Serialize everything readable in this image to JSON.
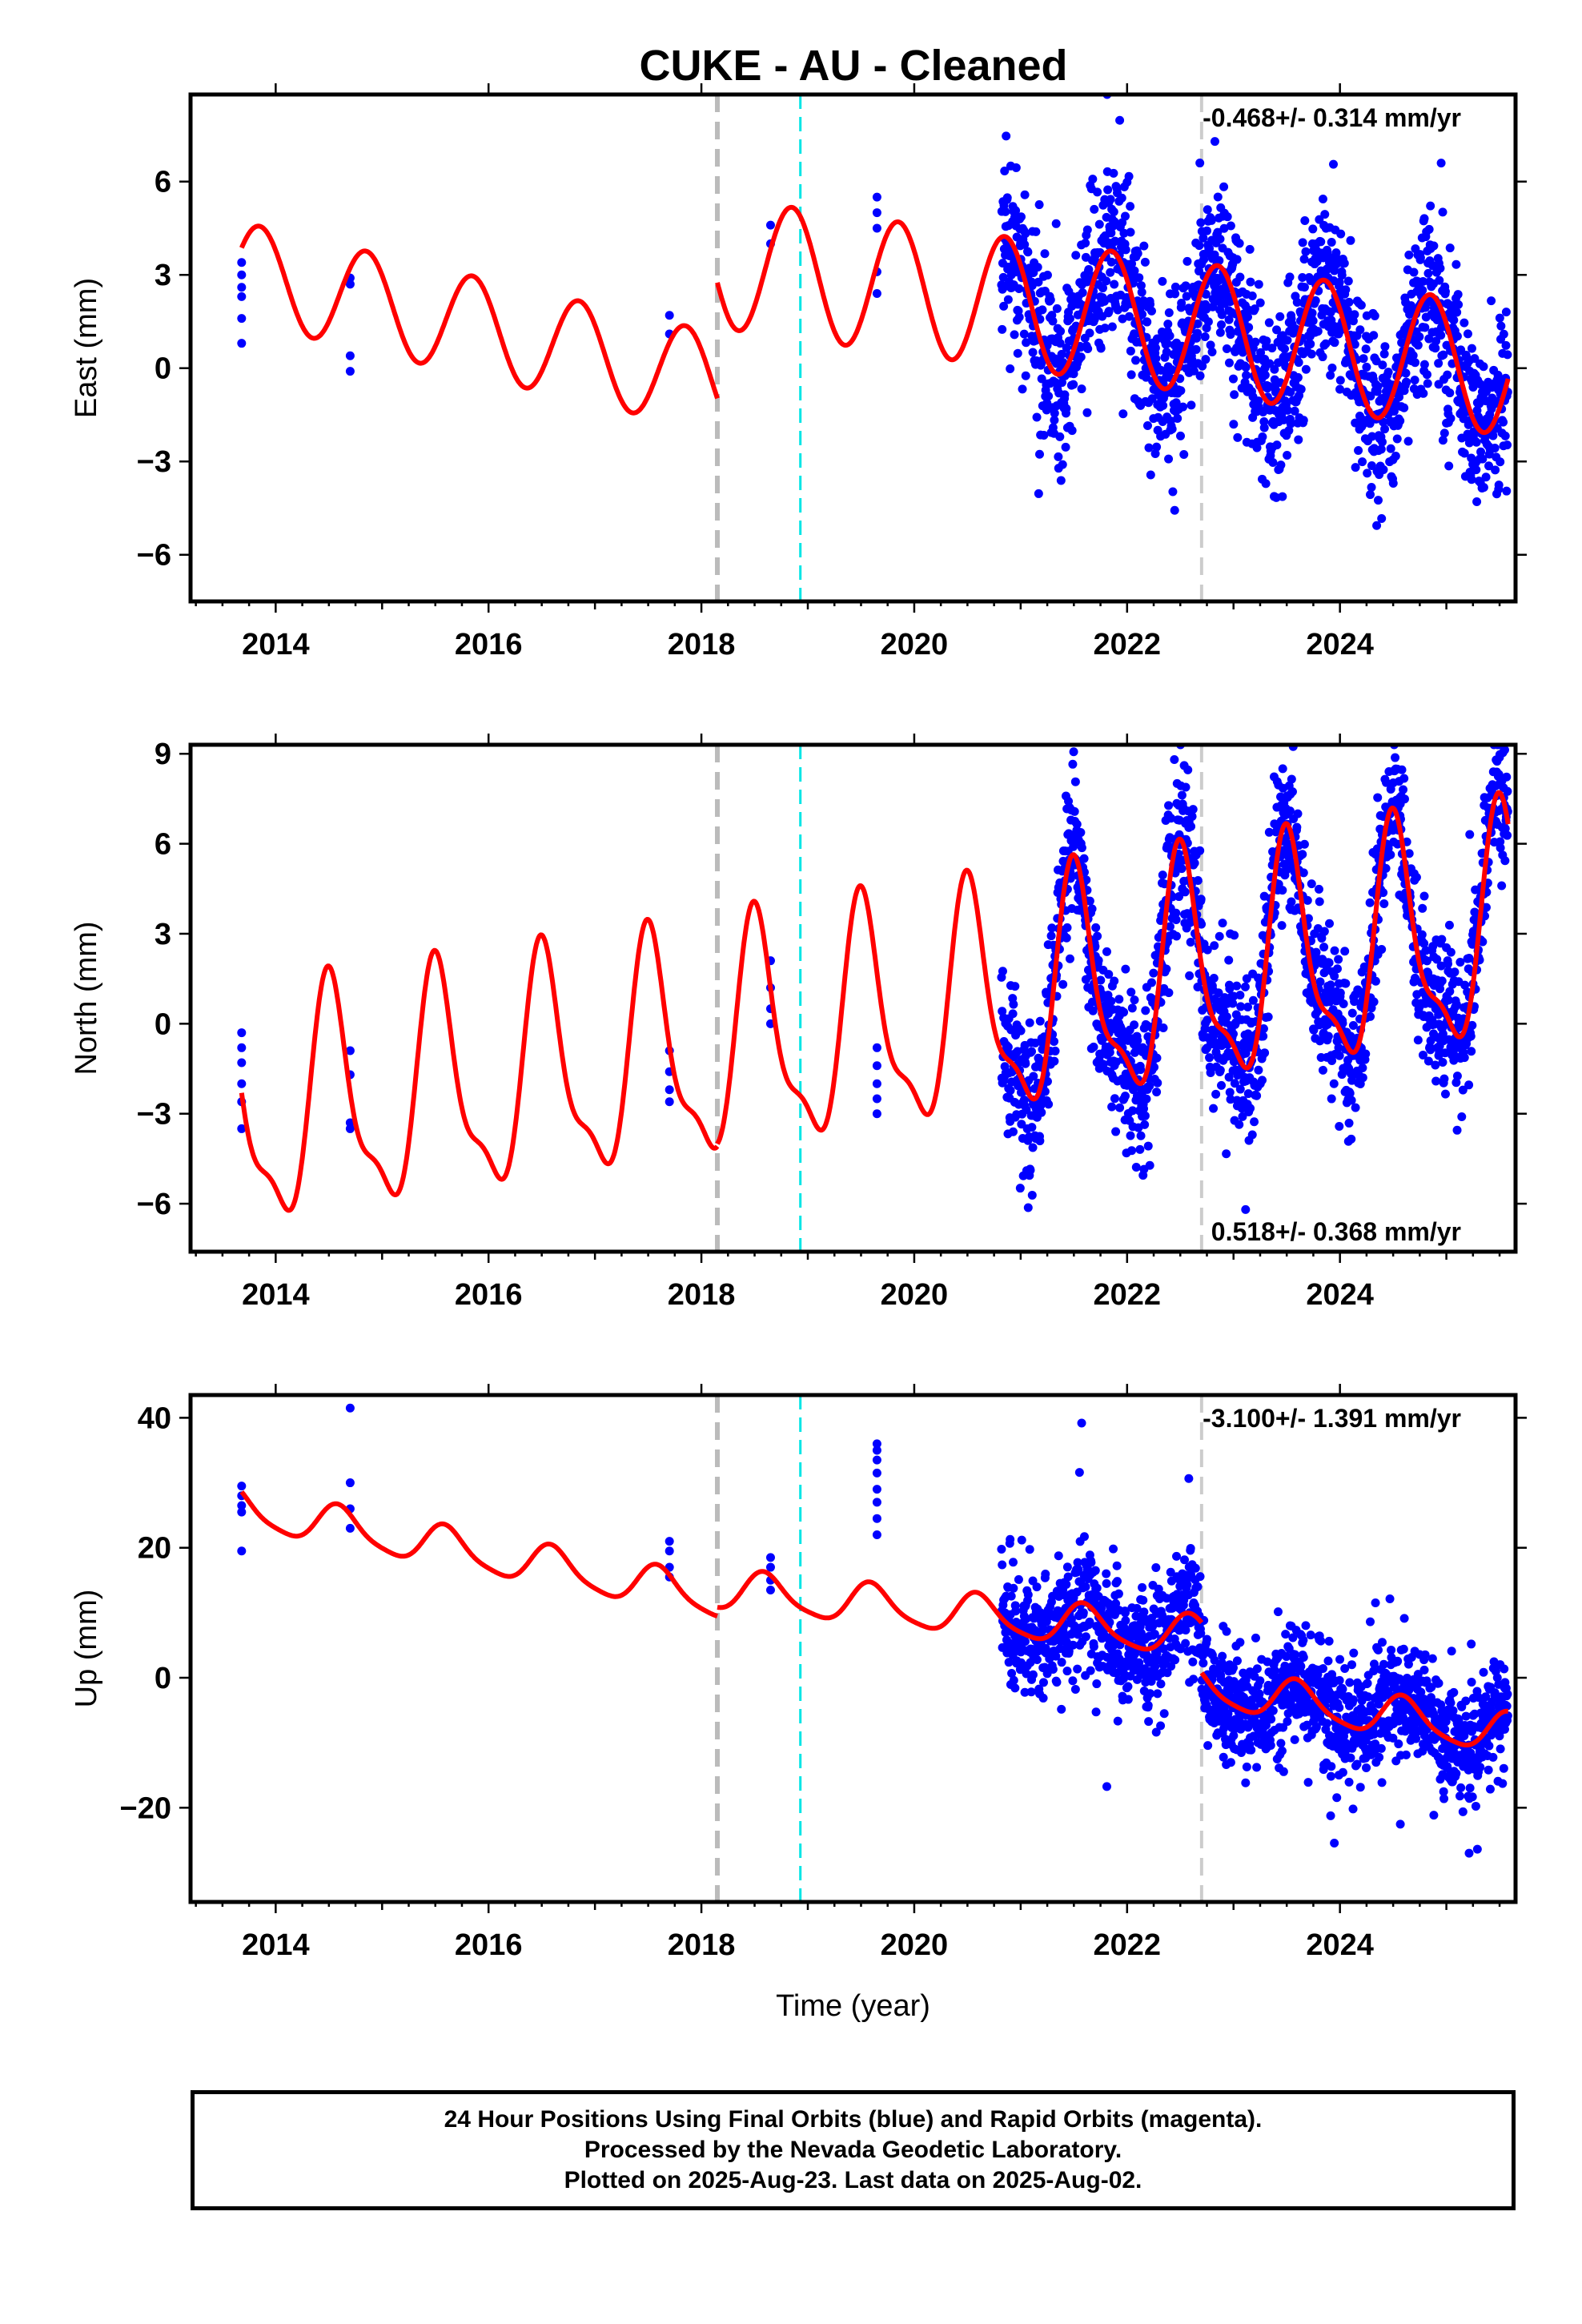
{
  "chart_data": [
    {
      "type": "scatter",
      "title": "CUKE  - AU - Cleaned",
      "ylabel": "East (mm)",
      "xlim": [
        2013.2,
        2025.65
      ],
      "ylim": [
        -7.5,
        8.8
      ],
      "yticks": [
        -6,
        -3,
        0,
        3,
        6
      ],
      "xticks": [
        2014,
        2016,
        2018,
        2020,
        2022,
        2024
      ],
      "rate_text": "-0.468+/- 0.314 mm/yr",
      "rate_position": "top-right",
      "step_lines": [
        {
          "x": 2018.15,
          "color": "#bbbbbb",
          "style": "dashed"
        },
        {
          "x": 2018.93,
          "color": "#00e5e5",
          "style": "dashed"
        },
        {
          "x": 2022.7,
          "color": "#cccccc",
          "style": "dashed"
        }
      ],
      "series": [
        {
          "role": "final orbits",
          "color": "#0000ff",
          "marker": "dot"
        },
        {
          "role": "model fit",
          "color": "#ff0000",
          "marker": "line"
        }
      ],
      "sparse_points": [
        {
          "x": 2013.68,
          "y": [
            0.8,
            1.6,
            2.3,
            2.6,
            3.0,
            3.4
          ]
        },
        {
          "x": 2014.7,
          "y": [
            -0.1,
            0.4,
            2.7,
            2.9
          ]
        },
        {
          "x": 2017.7,
          "y": [
            1.1,
            1.7
          ]
        },
        {
          "x": 2018.65,
          "y": [
            4.0,
            4.6
          ]
        },
        {
          "x": 2019.65,
          "y": [
            2.4,
            3.1,
            4.5,
            5.0,
            5.5
          ]
        }
      ],
      "model_segments": [
        {
          "start": 2013.68,
          "end": 2018.15,
          "base": 3.1,
          "slope": -0.8,
          "amplitude": 1.6,
          "phase_peak": 0.85,
          "a2": 0.0
        },
        {
          "start": 2018.15,
          "end": 2025.58,
          "base": 3.4,
          "slope": -0.468,
          "amplitude": 2.1,
          "phase_peak": 0.85,
          "a2": 0.0
        }
      ],
      "dense": {
        "start": 2020.82,
        "end": 2025.58,
        "count": 1650,
        "sigma": 1.35,
        "seed": 11
      }
    },
    {
      "type": "scatter",
      "ylabel": "North (mm)",
      "xlim": [
        2013.2,
        2025.65
      ],
      "ylim": [
        -7.6,
        9.3
      ],
      "yticks": [
        -6,
        -3,
        0,
        3,
        6,
        9
      ],
      "xticks": [
        2014,
        2016,
        2018,
        2020,
        2022,
        2024
      ],
      "rate_text": "0.518+/- 0.368 mm/yr",
      "rate_position": "bottom-right",
      "step_lines": [
        {
          "x": 2018.15,
          "color": "#bbbbbb",
          "style": "dashed"
        },
        {
          "x": 2018.93,
          "color": "#00e5e5",
          "style": "dashed"
        },
        {
          "x": 2022.7,
          "color": "#cccccc",
          "style": "dashed"
        }
      ],
      "series": [
        {
          "role": "final orbits",
          "color": "#0000ff",
          "marker": "dot"
        },
        {
          "role": "model fit",
          "color": "#ff0000",
          "marker": "line"
        }
      ],
      "sparse_points": [
        {
          "x": 2013.68,
          "y": [
            -3.5,
            -2.6,
            -2.0,
            -1.3,
            -0.8,
            -0.3
          ]
        },
        {
          "x": 2014.7,
          "y": [
            -3.5,
            -3.3,
            -1.7,
            -0.9
          ]
        },
        {
          "x": 2017.7,
          "y": [
            -2.6,
            -2.2,
            -1.6,
            -0.9
          ]
        },
        {
          "x": 2018.65,
          "y": [
            0.0,
            0.5,
            1.2,
            2.1
          ]
        },
        {
          "x": 2019.65,
          "y": [
            -3.0,
            -2.5,
            -2.0,
            -1.4,
            -0.8
          ]
        }
      ],
      "model_segments": [
        {
          "start": 2013.68,
          "end": 2018.15,
          "base": -3.2,
          "slope": 0.518,
          "amplitude": 3.6,
          "phase_peak": 0.52,
          "a2": 1.2
        },
        {
          "start": 2018.15,
          "end": 2025.58,
          "base": -0.8,
          "slope": 0.518,
          "amplitude": 3.6,
          "phase_peak": 0.52,
          "a2": 1.2
        }
      ],
      "dense": {
        "start": 2020.82,
        "end": 2025.58,
        "count": 1650,
        "sigma": 1.25,
        "seed": 23
      }
    },
    {
      "type": "scatter",
      "ylabel": "Up (mm)",
      "xlabel": "Time (year)",
      "xlim": [
        2013.2,
        2025.65
      ],
      "ylim": [
        -34.5,
        43.5
      ],
      "yticks": [
        -20,
        0,
        20,
        40
      ],
      "xticks": [
        2014,
        2016,
        2018,
        2020,
        2022,
        2024
      ],
      "rate_text": "-3.100+/- 1.391 mm/yr",
      "rate_position": "top-right",
      "step_lines": [
        {
          "x": 2018.15,
          "color": "#bbbbbb",
          "style": "dashed"
        },
        {
          "x": 2018.93,
          "color": "#00e5e5",
          "style": "dashed"
        },
        {
          "x": 2022.7,
          "color": "#cccccc",
          "style": "dashed"
        }
      ],
      "series": [
        {
          "role": "final orbits",
          "color": "#0000ff",
          "marker": "dot"
        },
        {
          "role": "model fit",
          "color": "#ff0000",
          "marker": "line"
        }
      ],
      "sparse_points": [
        {
          "x": 2013.68,
          "y": [
            19.5,
            25.5,
            26.5,
            28.0,
            29.5
          ]
        },
        {
          "x": 2014.7,
          "y": [
            23.0,
            26.0,
            30.0,
            41.5
          ]
        },
        {
          "x": 2017.7,
          "y": [
            15.5,
            17.0,
            19.5,
            21.0
          ]
        },
        {
          "x": 2018.65,
          "y": [
            13.5,
            15.0,
            17.0,
            18.5
          ]
        },
        {
          "x": 2019.65,
          "y": [
            22.0,
            24.5,
            27.0,
            29.0,
            31.5,
            33.5,
            35.0,
            36.0
          ]
        }
      ],
      "model_segments": [
        {
          "start": 2013.68,
          "end": 2018.15,
          "base": 26.0,
          "slope": -3.1,
          "amplitude": 3.0,
          "phase_peak": 0.6,
          "a2": 0.6
        },
        {
          "start": 2018.15,
          "end": 2022.7,
          "base": 13.5,
          "slope": -1.6,
          "amplitude": 3.0,
          "phase_peak": 0.6,
          "a2": 0.6
        },
        {
          "start": 2022.7,
          "end": 2025.58,
          "base": -1.5,
          "slope": -2.5,
          "amplitude": 3.0,
          "phase_peak": 0.6,
          "a2": 0.6
        }
      ],
      "dense": {
        "start": 2020.82,
        "end": 2025.58,
        "count": 1650,
        "sigma": 4.6,
        "seed": 37
      }
    }
  ],
  "caption": {
    "line1": "24 Hour Positions Using Final Orbits (blue) and Rapid Orbits (magenta).",
    "line2": "Processed by the Nevada Geodetic Laboratory.",
    "line3": "Plotted on 2025-Aug-23. Last data on 2025-Aug-02."
  }
}
